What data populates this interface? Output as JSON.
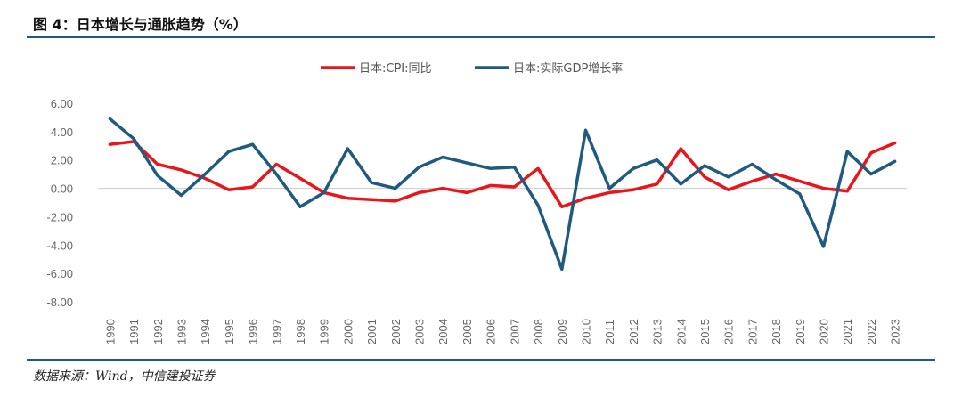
{
  "figure": {
    "title": "图 4：日本增长与通胀趋势（%）",
    "source": "数据来源：Wind，中信建投证券"
  },
  "colors": {
    "cpi": "#e8151b",
    "gdp": "#1f5a80",
    "axis": "#cccccc",
    "rule": "#1f5a80"
  },
  "chart_data": {
    "type": "line",
    "title": "",
    "xlabel": "",
    "ylabel": "",
    "ylim": [
      -8,
      6
    ],
    "yticks": [
      "6.00",
      "4.00",
      "2.00",
      "0.00",
      "-2.00",
      "-4.00",
      "-6.00",
      "-8.00"
    ],
    "legend_position": "top-center",
    "categories": [
      "1990",
      "1991",
      "1992",
      "1993",
      "1994",
      "1995",
      "1996",
      "1997",
      "1998",
      "1999",
      "2000",
      "2001",
      "2002",
      "2003",
      "2004",
      "2005",
      "2006",
      "2007",
      "2008",
      "2009",
      "2010",
      "2011",
      "2012",
      "2013",
      "2014",
      "2015",
      "2016",
      "2017",
      "2018",
      "2019",
      "2020",
      "2021",
      "2022",
      "2023"
    ],
    "series": [
      {
        "name": "日本:CPI:同比",
        "color": "#e8151b",
        "values": [
          3.1,
          3.3,
          1.7,
          1.3,
          0.7,
          -0.1,
          0.1,
          1.7,
          0.7,
          -0.3,
          -0.7,
          -0.8,
          -0.9,
          -0.3,
          0.0,
          -0.3,
          0.2,
          0.1,
          1.4,
          -1.3,
          -0.7,
          -0.3,
          -0.1,
          0.3,
          2.8,
          0.8,
          -0.1,
          0.5,
          1.0,
          0.5,
          0.0,
          -0.2,
          2.5,
          3.2
        ]
      },
      {
        "name": "日本:实际GDP增长率",
        "color": "#1f5a80",
        "values": [
          4.9,
          3.5,
          0.9,
          -0.5,
          1.0,
          2.6,
          3.1,
          1.0,
          -1.3,
          -0.3,
          2.8,
          0.4,
          0.0,
          1.5,
          2.2,
          1.8,
          1.4,
          1.5,
          -1.2,
          -5.7,
          4.1,
          0.0,
          1.4,
          2.0,
          0.3,
          1.6,
          0.8,
          1.7,
          0.6,
          -0.4,
          -4.1,
          2.6,
          1.0,
          1.9
        ]
      }
    ]
  }
}
